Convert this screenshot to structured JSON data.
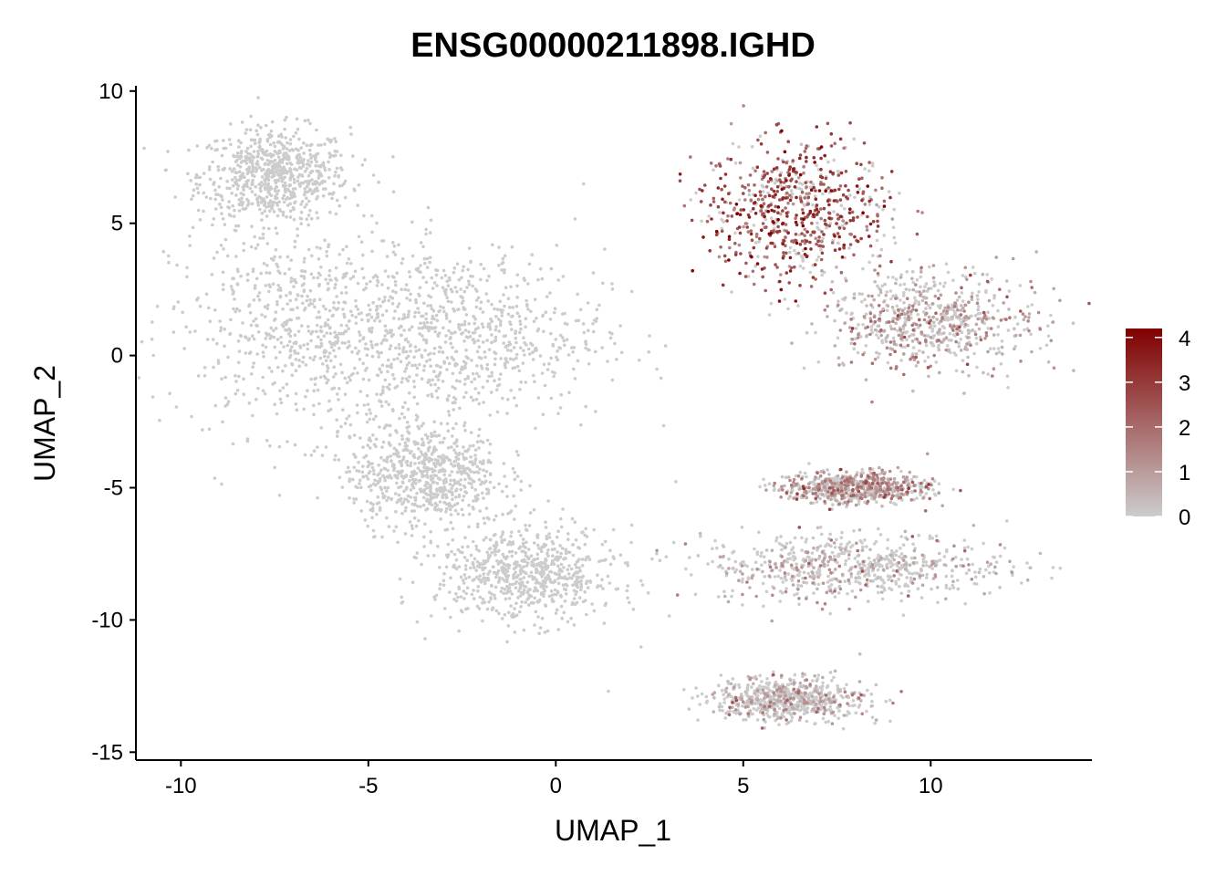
{
  "chart_data": {
    "type": "scatter",
    "title": "ENSG00000211898.IGHD",
    "xlabel": "UMAP_1",
    "ylabel": "UMAP_2",
    "xlim": [
      -11.2,
      14.3
    ],
    "ylim": [
      -15.3,
      10.2
    ],
    "x_ticks": [
      -10,
      -5,
      0,
      5,
      10
    ],
    "x_tick_labels": [
      "-10",
      "-5",
      "0",
      "5",
      "10"
    ],
    "y_ticks": [
      10,
      5,
      0,
      -5,
      -10,
      -15
    ],
    "y_tick_labels": [
      "10",
      "5",
      "0",
      "-5",
      "-10",
      "-15"
    ],
    "grid": false,
    "color_scale": {
      "low_color": "#cccccc",
      "high_color": "#800000",
      "min": 0,
      "max": 4.2,
      "ticks": [
        0,
        1,
        2,
        3,
        4
      ],
      "tick_labels": [
        "0",
        "1",
        "2",
        "3",
        "4"
      ],
      "legend_position": "right"
    },
    "clusters": [
      {
        "region": "upper-left hook",
        "cx": -7.5,
        "cy": 6.8,
        "sx": 1.0,
        "sy": 0.9,
        "mean_expression": 0.0
      },
      {
        "region": "left main mass",
        "cx": -6.5,
        "cy": 1.0,
        "sx": 1.9,
        "sy": 2.0,
        "mean_expression": 0.0
      },
      {
        "region": "center mass",
        "cx": -2.5,
        "cy": 0.8,
        "sx": 1.9,
        "sy": 1.6,
        "mean_expression": 0.0
      },
      {
        "region": "lower-left stem",
        "cx": -3.5,
        "cy": -4.5,
        "sx": 1.0,
        "sy": 1.0,
        "mean_expression": 0.0
      },
      {
        "region": "bottom blob",
        "cx": -0.8,
        "cy": -8.3,
        "sx": 1.2,
        "sy": 0.9,
        "mean_expression": 0.0
      },
      {
        "region": "upper-right B cells",
        "cx": 6.5,
        "cy": 5.5,
        "sx": 1.2,
        "sy": 1.3,
        "mean_expression": 2.6
      },
      {
        "region": "right tail",
        "cx": 10.0,
        "cy": 1.3,
        "sx": 1.4,
        "sy": 0.9,
        "mean_expression": 0.6
      },
      {
        "region": "middle strand",
        "cx": 8.0,
        "cy": -5.0,
        "sx": 1.0,
        "sy": 0.3,
        "mean_expression": 0.8
      },
      {
        "region": "lower streak",
        "cx": 8.0,
        "cy": -8.0,
        "sx": 2.0,
        "sy": 0.6,
        "mean_expression": 0.05
      },
      {
        "region": "bottom arc",
        "cx": 6.2,
        "cy": -13.0,
        "sx": 1.0,
        "sy": 0.4,
        "mean_expression": 0.05
      }
    ]
  }
}
